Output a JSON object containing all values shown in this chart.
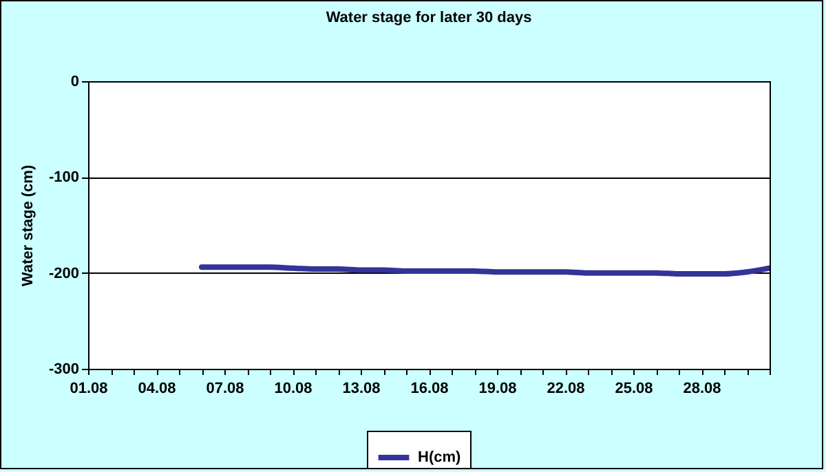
{
  "chart_data": {
    "type": "line",
    "title": "Water stage for later 30 days",
    "ylabel": "Water stage (cm)",
    "x": [
      "--08-06",
      "--08-07",
      "--08-08",
      "--08-09",
      "--08-10",
      "--08-11",
      "--08-12",
      "--08-13",
      "--08-14",
      "--08-15",
      "--08-16",
      "--08-17",
      "--08-18",
      "--08-19",
      "--08-20",
      "--08-21",
      "--08-22",
      "--08-23",
      "--08-24",
      "--08-25",
      "--08-26",
      "--08-27",
      "--08-28",
      "--08-29",
      "--08-30",
      "--08-31"
    ],
    "series": [
      {
        "name": "H(cm)",
        "color": "#333399",
        "values": [
          -194,
          -194,
          -194,
          -194,
          -195,
          -196,
          -196,
          -197,
          -197,
          -198,
          -198,
          -198,
          -198,
          -199,
          -199,
          -199,
          -199,
          -200,
          -200,
          -200,
          -200,
          -201,
          -201,
          -201,
          -199,
          -195
        ]
      }
    ],
    "xlim": [
      "--08-01",
      "--08-31"
    ],
    "xticks": [
      {
        "value": "--08-01",
        "label": "01.08"
      },
      {
        "value": "--08-02",
        "label": null
      },
      {
        "value": "--08-03",
        "label": null
      },
      {
        "value": "--08-04",
        "label": "04.08"
      },
      {
        "value": "--08-05",
        "label": null
      },
      {
        "value": "--08-06",
        "label": null
      },
      {
        "value": "--08-07",
        "label": "07.08"
      },
      {
        "value": "--08-08",
        "label": null
      },
      {
        "value": "--08-09",
        "label": null
      },
      {
        "value": "--08-10",
        "label": "10.08"
      },
      {
        "value": "--08-11",
        "label": null
      },
      {
        "value": "--08-12",
        "label": null
      },
      {
        "value": "--08-13",
        "label": "13.08"
      },
      {
        "value": "--08-14",
        "label": null
      },
      {
        "value": "--08-15",
        "label": null
      },
      {
        "value": "--08-16",
        "label": "16.08"
      },
      {
        "value": "--08-17",
        "label": null
      },
      {
        "value": "--08-18",
        "label": null
      },
      {
        "value": "--08-19",
        "label": "19.08"
      },
      {
        "value": "--08-20",
        "label": null
      },
      {
        "value": "--08-21",
        "label": null
      },
      {
        "value": "--08-22",
        "label": "22.08"
      },
      {
        "value": "--08-23",
        "label": null
      },
      {
        "value": "--08-24",
        "label": null
      },
      {
        "value": "--08-25",
        "label": "25.08"
      },
      {
        "value": "--08-26",
        "label": null
      },
      {
        "value": "--08-27",
        "label": null
      },
      {
        "value": "--08-28",
        "label": "28.08"
      },
      {
        "value": "--08-29",
        "label": null
      },
      {
        "value": "--08-30",
        "label": null
      },
      {
        "value": "--08-31",
        "label": null
      }
    ],
    "ylim": [
      -300,
      0
    ],
    "yticks": [
      -300,
      -200,
      -100,
      0
    ],
    "grid": "y",
    "legend": "bottom",
    "marker": "none",
    "line_style": "solid"
  }
}
